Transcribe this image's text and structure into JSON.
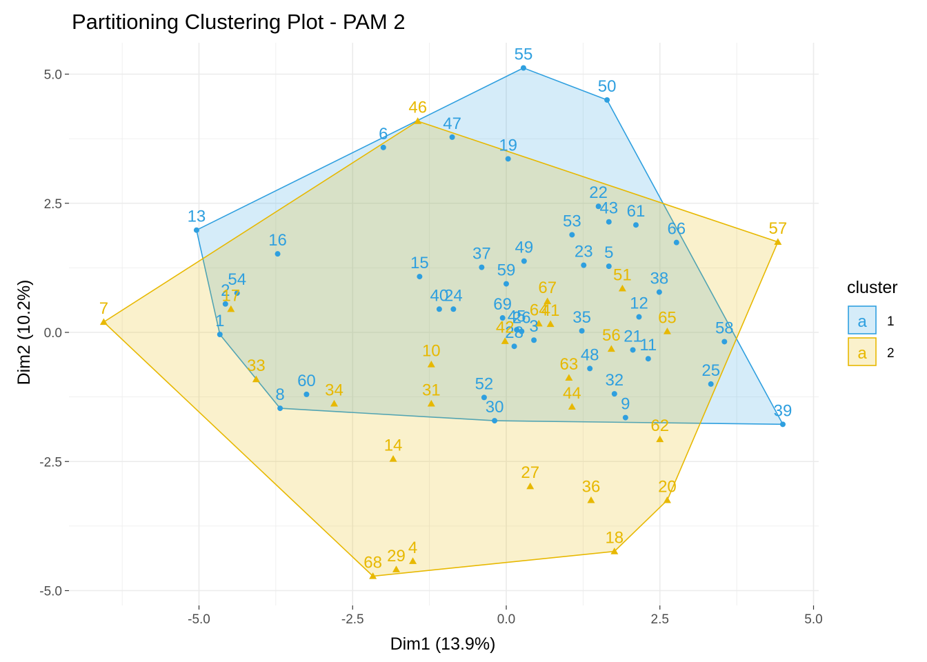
{
  "chart_data": {
    "type": "scatter",
    "title": "Partitioning Clustering Plot - PAM 2",
    "xlabel": "Dim1 (13.9%)",
    "ylabel": "Dim2 (10.2%)",
    "xlim": [
      -6.5,
      5.0
    ],
    "ylim": [
      -5.0,
      5.0
    ],
    "x_ticks": [
      -5.0,
      -2.5,
      0.0,
      2.5,
      5.0
    ],
    "x_tick_labels": [
      "-5.0",
      "-2.5",
      "0.0",
      "2.5",
      "5.0"
    ],
    "y_ticks": [
      -5.0,
      -2.5,
      0.0,
      2.5,
      5.0
    ],
    "y_tick_labels": [
      "-5.0",
      "-2.5",
      "0.0",
      "2.5",
      "5.0"
    ],
    "grid": true,
    "legend": {
      "title": "cluster",
      "position": "right",
      "glyph": "a"
    },
    "series": [
      {
        "name": "1",
        "color": "#2e9fdf",
        "fill": "#2e9fdf",
        "marker": "circle",
        "hull": [
          "13",
          "55",
          "50",
          "39",
          "30",
          "8",
          "1"
        ],
        "points": [
          {
            "label": "55",
            "x": 0.28,
            "y": 5.12
          },
          {
            "label": "50",
            "x": 1.64,
            "y": 4.5
          },
          {
            "label": "6",
            "x": -2.0,
            "y": 3.58
          },
          {
            "label": "47",
            "x": -0.88,
            "y": 3.78
          },
          {
            "label": "19",
            "x": 0.03,
            "y": 3.36
          },
          {
            "label": "13",
            "x": -5.04,
            "y": 1.98
          },
          {
            "label": "16",
            "x": -3.72,
            "y": 1.52
          },
          {
            "label": "22",
            "x": 1.5,
            "y": 2.44
          },
          {
            "label": "43",
            "x": 1.67,
            "y": 2.14
          },
          {
            "label": "61",
            "x": 2.11,
            "y": 2.08
          },
          {
            "label": "66",
            "x": 2.77,
            "y": 1.74
          },
          {
            "label": "53",
            "x": 1.07,
            "y": 1.89
          },
          {
            "label": "23",
            "x": 1.26,
            "y": 1.3
          },
          {
            "label": "5",
            "x": 1.67,
            "y": 1.28
          },
          {
            "label": "37",
            "x": -0.4,
            "y": 1.26
          },
          {
            "label": "49",
            "x": 0.29,
            "y": 1.38
          },
          {
            "label": "59",
            "x": 0.0,
            "y": 0.94
          },
          {
            "label": "54",
            "x": -4.38,
            "y": 0.76
          },
          {
            "label": "2",
            "x": -4.57,
            "y": 0.55
          },
          {
            "label": "15",
            "x": -1.41,
            "y": 1.08
          },
          {
            "label": "40",
            "x": -1.09,
            "y": 0.45
          },
          {
            "label": "24",
            "x": -0.86,
            "y": 0.45
          },
          {
            "label": "38",
            "x": 2.49,
            "y": 0.78
          },
          {
            "label": "12",
            "x": 2.16,
            "y": 0.3
          },
          {
            "label": "69",
            "x": -0.06,
            "y": 0.28
          },
          {
            "label": "45",
            "x": 0.17,
            "y": 0.05
          },
          {
            "label": "26",
            "x": 0.25,
            "y": 0.02
          },
          {
            "label": "3",
            "x": 0.45,
            "y": -0.15
          },
          {
            "label": "28",
            "x": 0.13,
            "y": -0.27
          },
          {
            "label": "35",
            "x": 1.23,
            "y": 0.03
          },
          {
            "label": "21",
            "x": 2.06,
            "y": -0.34
          },
          {
            "label": "11",
            "x": 2.31,
            "y": -0.51
          },
          {
            "label": "1",
            "x": -4.66,
            "y": -0.04
          },
          {
            "label": "58",
            "x": 3.55,
            "y": -0.18
          },
          {
            "label": "25",
            "x": 3.33,
            "y": -1.0
          },
          {
            "label": "48",
            "x": 1.36,
            "y": -0.7
          },
          {
            "label": "32",
            "x": 1.76,
            "y": -1.19
          },
          {
            "label": "9",
            "x": 1.94,
            "y": -1.65
          },
          {
            "label": "60",
            "x": -3.25,
            "y": -1.2
          },
          {
            "label": "8",
            "x": -3.68,
            "y": -1.47
          },
          {
            "label": "52",
            "x": -0.36,
            "y": -1.26
          },
          {
            "label": "30",
            "x": -0.19,
            "y": -1.71
          },
          {
            "label": "39",
            "x": 4.5,
            "y": -1.78
          }
        ]
      },
      {
        "name": "2",
        "color": "#e7b800",
        "fill": "#e7b800",
        "marker": "triangle",
        "hull": [
          "46",
          "57",
          "20",
          "18",
          "68",
          "7"
        ],
        "points": [
          {
            "label": "46",
            "x": -1.44,
            "y": 4.09
          },
          {
            "label": "57",
            "x": 4.42,
            "y": 1.75
          },
          {
            "label": "7",
            "x": -6.55,
            "y": 0.2
          },
          {
            "label": "17",
            "x": -4.48,
            "y": 0.45
          },
          {
            "label": "51",
            "x": 1.89,
            "y": 0.85
          },
          {
            "label": "67",
            "x": 0.67,
            "y": 0.6
          },
          {
            "label": "64",
            "x": 0.53,
            "y": 0.17
          },
          {
            "label": "41",
            "x": 0.72,
            "y": 0.16
          },
          {
            "label": "42",
            "x": -0.02,
            "y": -0.17
          },
          {
            "label": "65",
            "x": 2.62,
            "y": 0.02
          },
          {
            "label": "56",
            "x": 1.71,
            "y": -0.32
          },
          {
            "label": "10",
            "x": -1.22,
            "y": -0.62
          },
          {
            "label": "33",
            "x": -4.07,
            "y": -0.91
          },
          {
            "label": "63",
            "x": 1.02,
            "y": -0.88
          },
          {
            "label": "34",
            "x": -2.8,
            "y": -1.38
          },
          {
            "label": "31",
            "x": -1.22,
            "y": -1.38
          },
          {
            "label": "44",
            "x": 1.07,
            "y": -1.44
          },
          {
            "label": "62",
            "x": 2.5,
            "y": -2.07
          },
          {
            "label": "14",
            "x": -1.84,
            "y": -2.45
          },
          {
            "label": "27",
            "x": 0.39,
            "y": -2.98
          },
          {
            "label": "36",
            "x": 1.38,
            "y": -3.25
          },
          {
            "label": "20",
            "x": 2.62,
            "y": -3.25
          },
          {
            "label": "18",
            "x": 1.76,
            "y": -4.24
          },
          {
            "label": "4",
            "x": -1.52,
            "y": -4.43
          },
          {
            "label": "29",
            "x": -1.79,
            "y": -4.59
          },
          {
            "label": "68",
            "x": -2.17,
            "y": -4.72
          }
        ]
      }
    ]
  }
}
